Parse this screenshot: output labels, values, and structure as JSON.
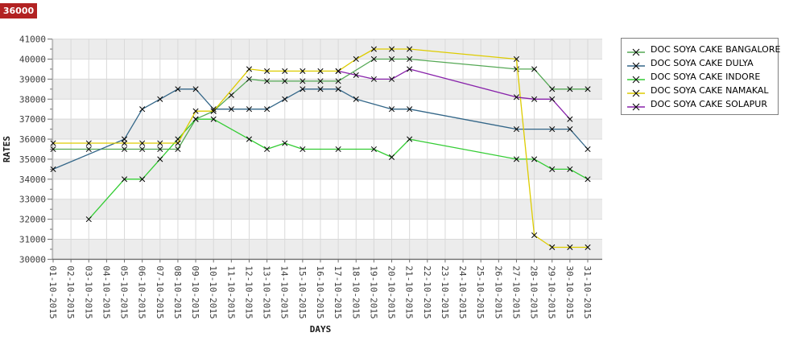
{
  "tooltip": {
    "value": "36000",
    "bg_color": "#b22222"
  },
  "axes": {
    "x_title": "DAYS",
    "y_title": "RATES",
    "y_tick_labels": [
      "41000",
      "40000",
      "39000",
      "38000",
      "37000",
      "36000",
      "35000",
      "34000",
      "33000",
      "32000",
      "31000",
      "30000"
    ]
  },
  "legend": {
    "entries": [
      "DOC SOYA CAKE BANGALORE",
      "DOC SOYA CAKE DULYA",
      "DOC SOYA CAKE INDORE",
      "DOC SOYA CAKE NAMAKAL",
      "DOC SOYA CAKE SOLAPUR"
    ]
  },
  "chart_data": {
    "type": "line",
    "title": "",
    "xlabel": "DAYS",
    "ylabel": "RATES",
    "ylim": [
      30000,
      41000
    ],
    "ytick_step": 1000,
    "grid": true,
    "band_fill_even_thousands": "#ececec",
    "legend_position": "right",
    "marker": "x",
    "x_categories": [
      "01-10-2015",
      "02-10-2015",
      "03-10-2015",
      "04-10-2015",
      "05-10-2015",
      "06-10-2015",
      "07-10-2015",
      "08-10-2015",
      "09-10-2015",
      "10-10-2015",
      "11-10-2015",
      "12-10-2015",
      "13-10-2015",
      "14-10-2015",
      "15-10-2015",
      "16-10-2015",
      "17-10-2015",
      "18-10-2015",
      "19-10-2015",
      "20-10-2015",
      "21-10-2015",
      "22-10-2015",
      "23-10-2015",
      "24-10-2015",
      "25-10-2015",
      "26-10-2015",
      "27-10-2015",
      "28-10-2015",
      "29-10-2015",
      "30-10-2015",
      "31-10-2015"
    ],
    "series": [
      {
        "name": "DOC SOYA CAKE BANGALORE",
        "color": "#55a855",
        "points": [
          [
            1,
            35500
          ],
          [
            3,
            35500
          ],
          [
            5,
            35500
          ],
          [
            6,
            35500
          ],
          [
            7,
            35500
          ],
          [
            8,
            35500
          ],
          [
            9,
            37000
          ],
          [
            10,
            37400
          ],
          [
            11,
            38200
          ],
          [
            12,
            39000
          ],
          [
            13,
            38900
          ],
          [
            14,
            38900
          ],
          [
            15,
            38900
          ],
          [
            16,
            38900
          ],
          [
            17,
            38900
          ],
          [
            19,
            40000
          ],
          [
            20,
            40000
          ],
          [
            21,
            40000
          ],
          [
            27,
            39500
          ],
          [
            28,
            39500
          ],
          [
            29,
            38500
          ],
          [
            30,
            38500
          ],
          [
            31,
            38500
          ]
        ]
      },
      {
        "name": "DOC SOYA CAKE DULYA",
        "color": "#336688",
        "points": [
          [
            1,
            34500
          ],
          [
            5,
            36000
          ],
          [
            6,
            37500
          ],
          [
            7,
            38000
          ],
          [
            8,
            38500
          ],
          [
            9,
            38500
          ],
          [
            10,
            37500
          ],
          [
            11,
            37500
          ],
          [
            12,
            37500
          ],
          [
            13,
            37500
          ],
          [
            14,
            38000
          ],
          [
            15,
            38500
          ],
          [
            16,
            38500
          ],
          [
            17,
            38500
          ],
          [
            18,
            38000
          ],
          [
            20,
            37500
          ],
          [
            21,
            37500
          ],
          [
            27,
            36500
          ],
          [
            29,
            36500
          ],
          [
            30,
            36500
          ],
          [
            31,
            35500
          ]
        ]
      },
      {
        "name": "DOC SOYA CAKE INDORE",
        "color": "#33cc33",
        "points": [
          [
            3,
            32000
          ],
          [
            5,
            34000
          ],
          [
            6,
            34000
          ],
          [
            7,
            35000
          ],
          [
            8,
            36000
          ],
          [
            9,
            37000
          ],
          [
            10,
            37000
          ],
          [
            12,
            36000
          ],
          [
            13,
            35500
          ],
          [
            14,
            35800
          ],
          [
            15,
            35500
          ],
          [
            17,
            35500
          ],
          [
            19,
            35500
          ],
          [
            20,
            35100
          ],
          [
            21,
            36000
          ],
          [
            27,
            35000
          ],
          [
            28,
            35000
          ],
          [
            29,
            34500
          ],
          [
            30,
            34500
          ],
          [
            31,
            34000
          ]
        ]
      },
      {
        "name": "DOC SOYA CAKE NAMAKAL",
        "color": "#ddcc00",
        "points": [
          [
            1,
            35800
          ],
          [
            3,
            35800
          ],
          [
            5,
            35800
          ],
          [
            6,
            35800
          ],
          [
            7,
            35800
          ],
          [
            8,
            35800
          ],
          [
            9,
            37400
          ],
          [
            10,
            37400
          ],
          [
            12,
            39500
          ],
          [
            13,
            39400
          ],
          [
            14,
            39400
          ],
          [
            15,
            39400
          ],
          [
            16,
            39400
          ],
          [
            17,
            39400
          ],
          [
            18,
            40000
          ],
          [
            19,
            40500
          ],
          [
            20,
            40500
          ],
          [
            21,
            40500
          ],
          [
            27,
            40000
          ],
          [
            28,
            31200
          ],
          [
            29,
            30600
          ],
          [
            30,
            30600
          ],
          [
            31,
            30600
          ]
        ]
      },
      {
        "name": "DOC SOYA CAKE SOLAPUR",
        "color": "#8822aa",
        "points": [
          [
            17,
            39400
          ],
          [
            18,
            39200
          ],
          [
            19,
            39000
          ],
          [
            20,
            39000
          ],
          [
            21,
            39500
          ],
          [
            27,
            38100
          ],
          [
            28,
            38000
          ],
          [
            29,
            38000
          ],
          [
            30,
            37000
          ]
        ]
      }
    ]
  }
}
